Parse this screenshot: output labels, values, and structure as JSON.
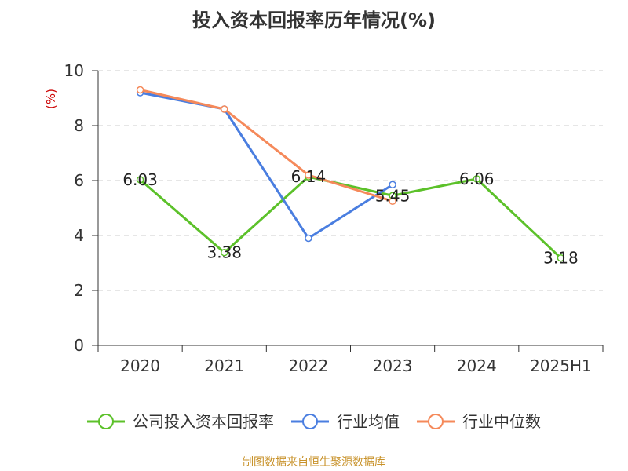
{
  "title": "投入资本回报率历年情况(%)",
  "source": "制图数据来自恒生聚源数据库",
  "colors": {
    "grid": "#cccccc",
    "axis": "#333333"
  },
  "chart_data": {
    "type": "line",
    "title": "投入资本回报率历年情况(%)",
    "ylabel": "(%)",
    "xlabel": "",
    "categories": [
      "2020",
      "2021",
      "2022",
      "2023",
      "2024",
      "2025H1"
    ],
    "ylim": [
      0,
      10
    ],
    "yticks": [
      0,
      2,
      4,
      6,
      8,
      10
    ],
    "grid": true,
    "grid_style": "dashed-horizontal",
    "legend_position": "bottom",
    "series": [
      {
        "name": "公司投入资本回报率",
        "color": "#5cc12a",
        "values": [
          6.03,
          3.38,
          6.14,
          5.45,
          6.06,
          3.18
        ],
        "labels": [
          "6.03",
          "3.38",
          "6.14",
          "5.45",
          "6.06",
          "3.18"
        ]
      },
      {
        "name": "行业均值",
        "color": "#4a7ee0",
        "values": [
          9.2,
          8.6,
          3.9,
          5.85,
          null,
          null
        ]
      },
      {
        "name": "行业中位数",
        "color": "#f5895a",
        "values": [
          9.3,
          8.6,
          6.2,
          5.25,
          null,
          null
        ]
      }
    ]
  }
}
